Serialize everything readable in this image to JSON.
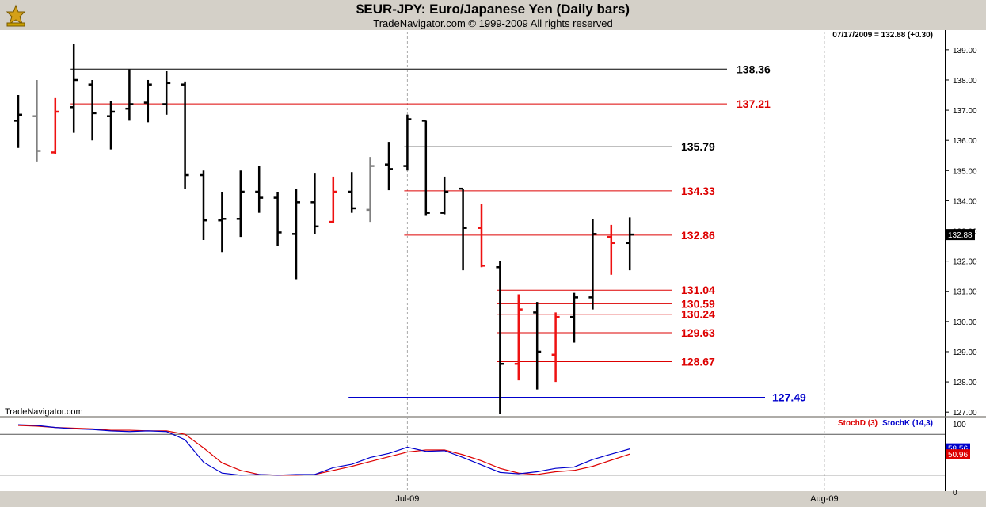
{
  "header": {
    "title": "$EUR-JPY:  Euro/Japanese Yen  (Daily bars)",
    "subtitle": "TradeNavigator.com © 1999-2009 All rights reserved"
  },
  "readout": "07/17/2009 = 132.88 (+0.30)",
  "watermark": "TradeNavigator.com",
  "colors": {
    "up": "#000000",
    "down": "#ee1111",
    "neutral": "#808080",
    "stochD": "#dd0000",
    "stochK": "#0000cc"
  },
  "chart_data": {
    "type": "ohlc",
    "title": "$EUR-JPY:  Euro/Japanese Yen  (Daily bars)",
    "ylim": [
      126.9,
      139.6
    ],
    "y_ticks": [
      "139.00",
      "138.00",
      "137.00",
      "136.00",
      "135.00",
      "134.00",
      "133.00",
      "132.00",
      "131.00",
      "130.00",
      "129.00",
      "128.00",
      "127.00"
    ],
    "y_tick_values": [
      139,
      138,
      137,
      136,
      135,
      134,
      133,
      132,
      131,
      130,
      129,
      128,
      127
    ],
    "x_labels": [
      {
        "label": "Jul-09",
        "bar": 21
      },
      {
        "label": "Aug-09",
        "bar": 43.5
      }
    ],
    "last_price_label": "132.88",
    "bars": [
      {
        "o": 136.65,
        "h": 137.5,
        "l": 135.75,
        "c": 136.85,
        "color": "up"
      },
      {
        "o": 136.8,
        "h": 138.0,
        "l": 135.3,
        "c": 135.65,
        "color": "neutral"
      },
      {
        "o": 135.6,
        "h": 137.4,
        "l": 135.55,
        "c": 136.95,
        "color": "down"
      },
      {
        "o": 137.1,
        "h": 139.2,
        "l": 136.25,
        "c": 138.0,
        "color": "up"
      },
      {
        "o": 137.85,
        "h": 138.0,
        "l": 136.0,
        "c": 136.9,
        "color": "up"
      },
      {
        "o": 136.8,
        "h": 137.3,
        "l": 135.7,
        "c": 136.95,
        "color": "up"
      },
      {
        "o": 137.05,
        "h": 138.35,
        "l": 136.65,
        "c": 137.2,
        "color": "up"
      },
      {
        "o": 137.25,
        "h": 138.0,
        "l": 136.6,
        "c": 137.85,
        "color": "up"
      },
      {
        "o": 137.2,
        "h": 138.3,
        "l": 136.85,
        "c": 137.9,
        "color": "up"
      },
      {
        "o": 137.85,
        "h": 137.95,
        "l": 134.4,
        "c": 134.85,
        "color": "up"
      },
      {
        "o": 134.85,
        "h": 135.0,
        "l": 132.7,
        "c": 133.35,
        "color": "up"
      },
      {
        "o": 133.35,
        "h": 134.3,
        "l": 132.3,
        "c": 133.4,
        "color": "up"
      },
      {
        "o": 133.4,
        "h": 135.0,
        "l": 132.8,
        "c": 134.3,
        "color": "up"
      },
      {
        "o": 134.3,
        "h": 135.15,
        "l": 133.6,
        "c": 134.1,
        "color": "up"
      },
      {
        "o": 134.1,
        "h": 134.3,
        "l": 132.5,
        "c": 132.95,
        "color": "up"
      },
      {
        "o": 132.9,
        "h": 134.4,
        "l": 131.4,
        "c": 133.95,
        "color": "up"
      },
      {
        "o": 133.95,
        "h": 134.9,
        "l": 132.9,
        "c": 133.15,
        "color": "up"
      },
      {
        "o": 133.3,
        "h": 134.8,
        "l": 133.25,
        "c": 134.3,
        "color": "down"
      },
      {
        "o": 134.3,
        "h": 134.95,
        "l": 133.6,
        "c": 133.75,
        "color": "up"
      },
      {
        "o": 133.7,
        "h": 135.45,
        "l": 133.3,
        "c": 135.15,
        "color": "neutral"
      },
      {
        "o": 135.2,
        "h": 135.95,
        "l": 134.35,
        "c": 135.05,
        "color": "up"
      },
      {
        "o": 135.15,
        "h": 136.85,
        "l": 135.0,
        "c": 136.7,
        "color": "up"
      },
      {
        "o": 136.65,
        "h": 136.65,
        "l": 133.5,
        "c": 133.6,
        "color": "up"
      },
      {
        "o": 133.6,
        "h": 134.8,
        "l": 133.55,
        "c": 134.3,
        "color": "up"
      },
      {
        "o": 134.4,
        "h": 134.4,
        "l": 131.7,
        "c": 133.1,
        "color": "up"
      },
      {
        "o": 133.1,
        "h": 133.9,
        "l": 131.8,
        "c": 131.85,
        "color": "down"
      },
      {
        "o": 131.8,
        "h": 132.0,
        "l": 126.95,
        "c": 128.6,
        "color": "up"
      },
      {
        "o": 128.6,
        "h": 130.9,
        "l": 128.05,
        "c": 130.4,
        "color": "down"
      },
      {
        "o": 130.3,
        "h": 130.65,
        "l": 127.75,
        "c": 129.0,
        "color": "up"
      },
      {
        "o": 128.9,
        "h": 130.3,
        "l": 128.0,
        "c": 130.15,
        "color": "down"
      },
      {
        "o": 130.15,
        "h": 130.95,
        "l": 129.3,
        "c": 130.8,
        "color": "up"
      },
      {
        "o": 130.8,
        "h": 133.4,
        "l": 130.4,
        "c": 132.9,
        "color": "up"
      },
      {
        "o": 132.8,
        "h": 133.2,
        "l": 131.55,
        "c": 132.6,
        "color": "down"
      },
      {
        "o": 132.6,
        "h": 133.45,
        "l": 131.7,
        "c": 132.88,
        "color": "up"
      }
    ],
    "levels": [
      {
        "value": 138.36,
        "label": "138.36",
        "color": "#000000",
        "from_bar": 3
      },
      {
        "value": 137.21,
        "label": "137.21",
        "color": "#dd0000",
        "from_bar": 3
      },
      {
        "value": 135.79,
        "label": "135.79",
        "color": "#000000",
        "from_bar": 21
      },
      {
        "value": 134.33,
        "label": "134.33",
        "color": "#dd0000",
        "from_bar": 21
      },
      {
        "value": 132.86,
        "label": "132.86",
        "color": "#dd0000",
        "from_bar": 21
      },
      {
        "value": 131.04,
        "label": "131.04",
        "color": "#dd0000",
        "from_bar": 26
      },
      {
        "value": 130.59,
        "label": "130.59",
        "color": "#dd0000",
        "from_bar": 26
      },
      {
        "value": 130.24,
        "label": "130.24",
        "color": "#dd0000",
        "from_bar": 26
      },
      {
        "value": 129.63,
        "label": "129.63",
        "color": "#dd0000",
        "from_bar": 26
      },
      {
        "value": 128.67,
        "label": "128.67",
        "color": "#dd0000",
        "from_bar": 26
      },
      {
        "value": 127.49,
        "label": "127.49",
        "color": "#0000cc",
        "from_bar": 18
      }
    ],
    "stochastic": {
      "ylim": [
        0,
        100
      ],
      "y_ticks": [
        "100",
        "0"
      ],
      "y_tick_values": [
        100,
        0
      ],
      "levels": [
        80,
        20
      ],
      "legend": [
        {
          "name": "StochD (3)",
          "color": "#dd0000"
        },
        {
          "name": "StochK (14,3)",
          "color": "#0000cc"
        }
      ],
      "k_label": "58.56",
      "d_label": "50.96",
      "series": [
        {
          "name": "StochD (3)",
          "values": [
            93,
            92,
            90,
            89,
            88,
            86,
            86,
            85,
            85,
            80,
            60,
            38,
            27,
            21,
            20,
            20,
            21,
            27,
            33,
            40,
            47,
            54,
            57,
            57,
            50,
            41,
            30,
            23,
            21,
            25,
            27,
            33,
            42,
            51
          ]
        },
        {
          "name": "StochK (14,3)",
          "values": [
            94,
            93,
            90,
            88,
            87,
            85,
            84,
            85,
            84,
            72,
            39,
            23,
            20,
            21,
            20,
            21,
            21,
            31,
            36,
            46,
            52,
            61,
            55,
            56,
            46,
            35,
            24,
            22,
            25,
            30,
            32,
            43,
            51,
            58.56
          ]
        }
      ]
    }
  }
}
